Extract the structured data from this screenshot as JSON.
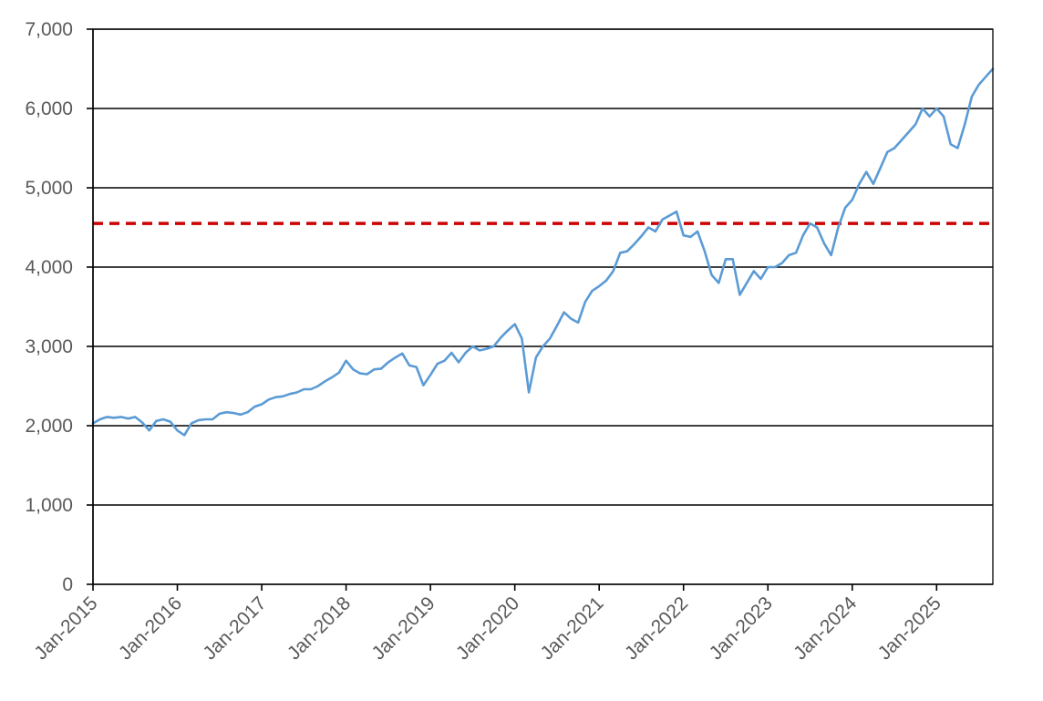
{
  "chart_data": {
    "type": "line",
    "title": "",
    "xlabel": "",
    "ylabel": "",
    "ylim": [
      0,
      7000
    ],
    "xlim": [
      "2015-01",
      "2025-09"
    ],
    "grid": "horizontal",
    "legend": "none",
    "y_ticks": [
      0,
      1000,
      2000,
      3000,
      4000,
      5000,
      6000,
      7000
    ],
    "y_tick_labels": [
      "0",
      "1,000",
      "2,000",
      "3,000",
      "4,000",
      "5,000",
      "6,000",
      "7,000"
    ],
    "x_ticks": [
      "2015-01",
      "2016-01",
      "2017-01",
      "2018-01",
      "2019-01",
      "2020-01",
      "2021-01",
      "2022-01",
      "2023-01",
      "2024-01",
      "2025-01"
    ],
    "x_tick_labels": [
      "Jan-2015",
      "Jan-2016",
      "Jan-2017",
      "Jan-2018",
      "Jan-2019",
      "Jan-2020",
      "Jan-2021",
      "Jan-2022",
      "Jan-2023",
      "Jan-2024",
      "Jan-2025"
    ],
    "series": [
      {
        "color": "#5b9bd5",
        "x": [
          "2015-01",
          "2015-02",
          "2015-03",
          "2015-04",
          "2015-05",
          "2015-06",
          "2015-07",
          "2015-08",
          "2015-09",
          "2015-10",
          "2015-11",
          "2015-12",
          "2016-01",
          "2016-02",
          "2016-03",
          "2016-04",
          "2016-05",
          "2016-06",
          "2016-07",
          "2016-08",
          "2016-09",
          "2016-10",
          "2016-11",
          "2016-12",
          "2017-01",
          "2017-02",
          "2017-03",
          "2017-04",
          "2017-05",
          "2017-06",
          "2017-07",
          "2017-08",
          "2017-09",
          "2017-10",
          "2017-11",
          "2017-12",
          "2018-01",
          "2018-02",
          "2018-03",
          "2018-04",
          "2018-05",
          "2018-06",
          "2018-07",
          "2018-08",
          "2018-09",
          "2018-10",
          "2018-11",
          "2018-12",
          "2019-01",
          "2019-02",
          "2019-03",
          "2019-04",
          "2019-05",
          "2019-06",
          "2019-07",
          "2019-08",
          "2019-09",
          "2019-10",
          "2019-11",
          "2019-12",
          "2020-01",
          "2020-02",
          "2020-03",
          "2020-04",
          "2020-05",
          "2020-06",
          "2020-07",
          "2020-08",
          "2020-09",
          "2020-10",
          "2020-11",
          "2020-12",
          "2021-01",
          "2021-02",
          "2021-03",
          "2021-04",
          "2021-05",
          "2021-06",
          "2021-07",
          "2021-08",
          "2021-09",
          "2021-10",
          "2021-11",
          "2021-12",
          "2022-01",
          "2022-02",
          "2022-03",
          "2022-04",
          "2022-05",
          "2022-06",
          "2022-07",
          "2022-08",
          "2022-09",
          "2022-10",
          "2022-11",
          "2022-12",
          "2023-01",
          "2023-02",
          "2023-03",
          "2023-04",
          "2023-05",
          "2023-06",
          "2023-07",
          "2023-08",
          "2023-09",
          "2023-10",
          "2023-11",
          "2023-12",
          "2024-01",
          "2024-02",
          "2024-03",
          "2024-04",
          "2024-05",
          "2024-06",
          "2024-07",
          "2024-08",
          "2024-09",
          "2024-10",
          "2024-11",
          "2024-12",
          "2025-01",
          "2025-02",
          "2025-03",
          "2025-04",
          "2025-05",
          "2025-06",
          "2025-07",
          "2025-08",
          "2025-09"
        ],
        "values": [
          2030,
          2080,
          2110,
          2100,
          2110,
          2090,
          2110,
          2040,
          1940,
          2060,
          2080,
          2050,
          1940,
          1880,
          2030,
          2070,
          2080,
          2080,
          2150,
          2170,
          2160,
          2140,
          2170,
          2240,
          2270,
          2330,
          2360,
          2370,
          2400,
          2420,
          2460,
          2460,
          2500,
          2560,
          2610,
          2670,
          2820,
          2710,
          2660,
          2650,
          2710,
          2720,
          2800,
          2860,
          2910,
          2760,
          2740,
          2510,
          2640,
          2780,
          2820,
          2920,
          2800,
          2920,
          3000,
          2950,
          2970,
          3000,
          3110,
          3200,
          3280,
          3100,
          2420,
          2860,
          3000,
          3100,
          3260,
          3430,
          3350,
          3300,
          3560,
          3700,
          3760,
          3830,
          3950,
          4180,
          4200,
          4290,
          4390,
          4500,
          4450,
          4600,
          4650,
          4700,
          4400,
          4380,
          4450,
          4200,
          3900,
          3800,
          4100,
          4100,
          3650,
          3800,
          3950,
          3850,
          4000,
          4000,
          4050,
          4150,
          4180,
          4400,
          4550,
          4500,
          4300,
          4150,
          4500,
          4750,
          4850,
          5050,
          5200,
          5050,
          5250,
          5450,
          5500,
          5600,
          5700,
          5800,
          6000,
          5900,
          6000,
          5900,
          5550,
          5500,
          5800,
          6150,
          6300,
          6400,
          6500
        ]
      }
    ],
    "reference_line": {
      "y": 4550,
      "color": "#cc0000",
      "style": "dashed"
    }
  }
}
